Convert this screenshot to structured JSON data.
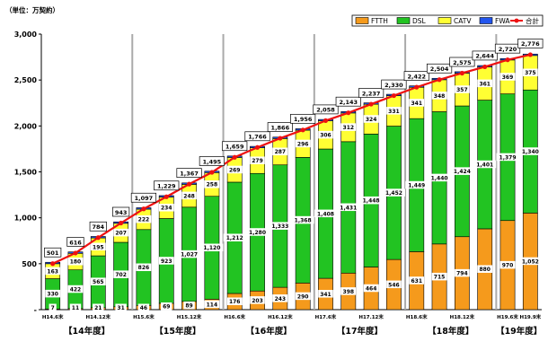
{
  "unit_label": "（単位：万契約）",
  "colors": {
    "FTTH": "#f59a1c",
    "DSL": "#22c322",
    "CATV": "#ffff33",
    "FWA": "#2255ee",
    "total": "#ee1111",
    "divider": "#aaaaaa"
  },
  "chart_data": {
    "type": "bar",
    "stacked": true,
    "ylim": [
      0,
      3000
    ],
    "yticks": [
      "-",
      "500",
      "1,000",
      "1,500",
      "2,000",
      "2,500",
      "3,000"
    ],
    "ytick_values": [
      0,
      500,
      1000,
      1500,
      2000,
      2500,
      3000
    ],
    "categories": [
      "H14.6末",
      "H14.9末",
      "H14.12末",
      "H15.3末",
      "H15.6末",
      "H15.9末",
      "H15.12末",
      "H16.3末",
      "H16.6末",
      "H16.9末",
      "H16.12末",
      "H17.3末",
      "H17.6末",
      "H17.9末",
      "H17.12末",
      "H18.3末",
      "H18.6末",
      "H18.9末",
      "H18.12末",
      "H19.3末",
      "H19.6末",
      "H19.9末"
    ],
    "xtick_labels": [
      "H14.6末",
      "",
      "H14.12末",
      "",
      "H15.6末",
      "",
      "H15.12末",
      "",
      "H16.6末",
      "",
      "H16.12末",
      "",
      "H17.6末",
      "",
      "H17.12末",
      "",
      "H18.6末",
      "",
      "H18.12末",
      "",
      "H19.6末",
      "H19.9末"
    ],
    "series": [
      {
        "name": "FTTH",
        "values": [
          7,
          11,
          21,
          31,
          46,
          69,
          89,
          114,
          176,
          203,
          243,
          290,
          341,
          398,
          464,
          546,
          631,
          715,
          794,
          880,
          970,
          1052
        ],
        "labels": [
          "7",
          "11",
          "21",
          "31",
          "46",
          "69",
          "89",
          "114",
          "176",
          "203",
          "243",
          "290",
          "341",
          "398",
          "464",
          "546",
          "631",
          "715",
          "794",
          "880",
          "970",
          "1,052"
        ]
      },
      {
        "name": "DSL",
        "values": [
          330,
          422,
          565,
          702,
          826,
          923,
          1027,
          1120,
          1212,
          1280,
          1333,
          1368,
          1408,
          1431,
          1448,
          1452,
          1449,
          1440,
          1424,
          1401,
          1379,
          1340
        ],
        "labels": [
          "330",
          "422",
          "565",
          "702",
          "826",
          "923",
          "1,027",
          "1,120",
          "1,212",
          "1,280",
          "1,333",
          "1,368",
          "1,408",
          "1,431",
          "1,448",
          "1,452",
          "1,449",
          "1,440",
          "1,424",
          "1,401",
          "1,379",
          "1,340"
        ]
      },
      {
        "name": "CATV",
        "values": [
          163,
          180,
          195,
          207,
          222,
          234,
          248,
          258,
          269,
          279,
          287,
          296,
          306,
          312,
          324,
          331,
          341,
          348,
          357,
          361,
          369,
          375
        ],
        "labels": [
          "163",
          "180",
          "195",
          "207",
          "222",
          "234",
          "248",
          "258",
          "269",
          "279",
          "287",
          "296",
          "306",
          "312",
          "324",
          "331",
          "341",
          "348",
          "357",
          "361",
          "369",
          "375"
        ]
      },
      {
        "name": "FWA",
        "values": [
          1,
          3,
          3,
          3,
          3,
          3,
          3,
          3,
          2,
          4,
          3,
          2,
          3,
          2,
          1,
          1,
          1,
          1,
          0,
          2,
          2,
          9
        ],
        "labels": []
      }
    ],
    "totals": [
      501,
      616,
      784,
      943,
      1097,
      1229,
      1367,
      1495,
      1659,
      1766,
      1866,
      1956,
      2058,
      2143,
      2237,
      2330,
      2422,
      2504,
      2575,
      2644,
      2720,
      2776
    ],
    "total_labels": [
      "501",
      "616",
      "784",
      "943",
      "1,097",
      "1,229",
      "1,367",
      "1,495",
      "1,659",
      "1,766",
      "1,866",
      "1,956",
      "2,058",
      "2,143",
      "2,237",
      "2,330",
      "2,422",
      "2,504",
      "2,575",
      "2,644",
      "2,720",
      "2,776"
    ],
    "total_series_name": "合計",
    "legend": [
      "FTTH",
      "DSL",
      "CATV",
      "FWA",
      "合計"
    ],
    "legend_position": "top-right",
    "fiscal_years": [
      "【14年度】",
      "【15年度】",
      "【16年度】",
      "【17年度】",
      "【18年度】",
      "【19年度】"
    ],
    "fiscal_year_groups": [
      [
        0,
        3
      ],
      [
        4,
        7
      ],
      [
        8,
        11
      ],
      [
        12,
        15
      ],
      [
        16,
        19
      ],
      [
        20,
        21
      ]
    ],
    "grid": false
  }
}
